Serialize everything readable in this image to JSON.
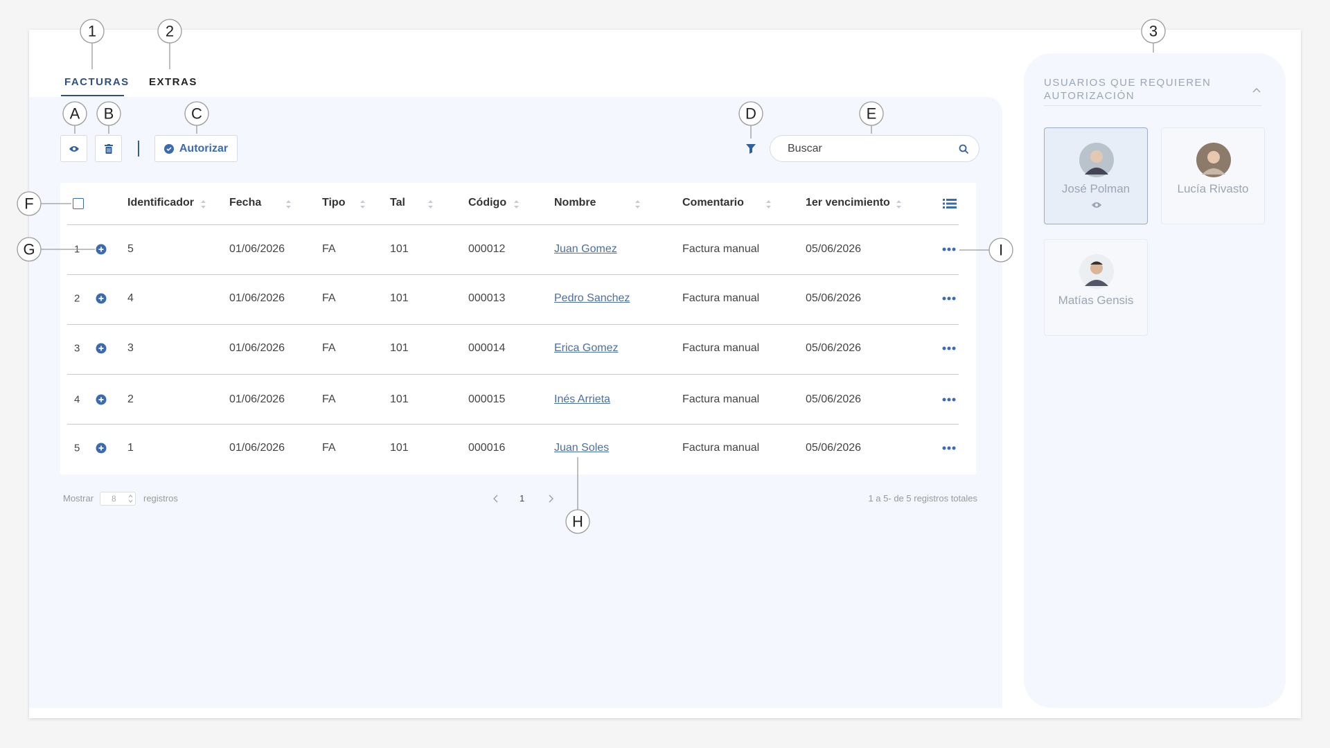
{
  "callouts": {
    "numbers": [
      "1",
      "2",
      "3"
    ],
    "letters": [
      "A",
      "B",
      "C",
      "D",
      "E",
      "F",
      "G",
      "H",
      "I"
    ]
  },
  "tabs": [
    "FACTURAS",
    "EXTRAS"
  ],
  "toolbar": {
    "authorize_button": "Autorizar",
    "search_placeholder": "Buscar"
  },
  "table": {
    "columns": [
      "Identificador",
      "Fecha",
      "Tipo",
      "Tal",
      "Código",
      "Nombre",
      "Comentario",
      "1er vencimiento"
    ],
    "rows": [
      [
        "1",
        "5",
        "01/06/2026",
        "FA",
        "101",
        "000012",
        "Juan Gomez",
        "Factura manual",
        "05/06/2026"
      ],
      [
        "2",
        "4",
        "01/06/2026",
        "FA",
        "101",
        "000013",
        "Pedro Sanchez",
        "Factura manual",
        "05/06/2026"
      ],
      [
        "3",
        "3",
        "01/06/2026",
        "FA",
        "101",
        "000014",
        "Erica Gomez",
        "Factura manual",
        "05/06/2026"
      ],
      [
        "4",
        "2",
        "01/06/2026",
        "FA",
        "101",
        "000015",
        "Inés Arrieta",
        "Factura manual",
        "05/06/2026"
      ],
      [
        "5",
        "1",
        "01/06/2026",
        "FA",
        "101",
        "000016",
        "Juan Soles",
        "Factura manual",
        "05/06/2026"
      ]
    ]
  },
  "pagination": {
    "show_label": "Mostrar",
    "page_size": "8",
    "records_label": "registros",
    "current_page": "1",
    "summary": "1 a 5- de 5 registros totales"
  },
  "sidebar": {
    "title": "USUARIOS QUE REQUIEREN AUTORIZACIÓN",
    "users": [
      "José Polman",
      "Lucía Rivasto",
      "Matías Gensis"
    ]
  }
}
